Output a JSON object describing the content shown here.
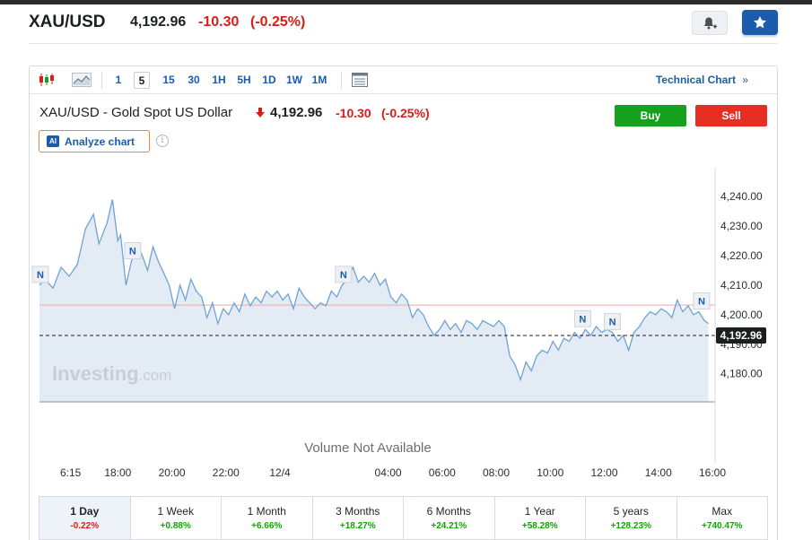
{
  "header": {
    "symbol": "XAU/USD",
    "price": "4,192.96",
    "change": "-10.30",
    "change_pct": "(-0.25%)",
    "bell_icon": "bell-plus-icon",
    "star_icon": "star-icon"
  },
  "toolbar": {
    "timeframes": [
      "1",
      "5",
      "15",
      "30",
      "1H",
      "5H",
      "1D",
      "1W",
      "1M"
    ],
    "active_timeframe": "5",
    "technical_chart": "Technical Chart",
    "technical_chart_arrow": "»"
  },
  "chart_header": {
    "title": "XAU/USD - Gold Spot US Dollar",
    "price": "4,192.96",
    "change": "-10.30",
    "change_pct": "(-0.25%)",
    "buy": "Buy",
    "sell": "Sell",
    "ai_badge": "AI",
    "analyze": "Analyze chart",
    "info": "i"
  },
  "chart_data": {
    "type": "area",
    "y_ticks": [
      "4,240.00",
      "4,230.00",
      "4,220.00",
      "4,210.00",
      "4,200.00",
      "4,190.00",
      "4,180.00"
    ],
    "x_ticks": [
      "6:15",
      "18:00",
      "20:00",
      "22:00",
      "12/4",
      "04:00",
      "06:00",
      "08:00",
      "10:00",
      "12:00",
      "14:00",
      "16:00"
    ],
    "ylim": [
      4170.5,
      4247
    ],
    "x_hours": [
      16.25,
      18,
      20,
      22,
      24,
      28,
      30,
      32,
      34,
      36,
      38,
      40
    ],
    "xlim": [
      15.1,
      40.1
    ],
    "previous_close": 4203.26,
    "last_price": 4192.96,
    "last_price_label": "4,192.96",
    "watermark": "Investing",
    "watermark_suffix": ".com",
    "volume_note": "Volume Not Available",
    "news_marker": "N",
    "news_hours": [
      15.1,
      18.55,
      26.35,
      35.2,
      36.3,
      39.6
    ],
    "series": [
      {
        "x": [
          15.1,
          15.3,
          15.6,
          15.9,
          16.2,
          16.5,
          16.8,
          17.1,
          17.3,
          17.6,
          17.8,
          18.0,
          18.1,
          18.3,
          18.5,
          18.7,
          18.9,
          19.1,
          19.3,
          19.5,
          19.7,
          19.9,
          20.1,
          20.3,
          20.5,
          20.7,
          20.9,
          21.1,
          21.3,
          21.5,
          21.7,
          21.9,
          22.1,
          22.3,
          22.5,
          22.7,
          22.9,
          23.1,
          23.3,
          23.5,
          23.7,
          23.9,
          24.1,
          24.3,
          24.5,
          24.7,
          24.9,
          25.1,
          25.3,
          25.5,
          25.7,
          25.9,
          26.1,
          26.3,
          26.5,
          26.7,
          26.9,
          27.1,
          27.3,
          27.5,
          27.7,
          27.9,
          28.1,
          28.3,
          28.5,
          28.7,
          28.9,
          29.1,
          29.3,
          29.5,
          29.7,
          29.9,
          30.1,
          30.3,
          30.5,
          30.7,
          30.9,
          31.1,
          31.3,
          31.5,
          31.7,
          31.9,
          32.1,
          32.3,
          32.5,
          32.7,
          32.9,
          33.1,
          33.3,
          33.5,
          33.7,
          33.9,
          34.1,
          34.3,
          34.5,
          34.7,
          34.9,
          35.1,
          35.3,
          35.5,
          35.7,
          35.9,
          36.1,
          36.3,
          36.5,
          36.7,
          36.9,
          37.1,
          37.3,
          37.5,
          37.7,
          37.9,
          38.1,
          38.3,
          38.5,
          38.7,
          38.9,
          39.1,
          39.3,
          39.5,
          39.7,
          39.85
        ],
        "y": [
          4210,
          4212,
          4209,
          4216,
          4213,
          4217,
          4229,
          4234,
          4224,
          4231,
          4239,
          4225,
          4227,
          4210,
          4218,
          4224,
          4220,
          4215,
          4223,
          4218,
          4214,
          4210,
          4202,
          4210,
          4205,
          4212,
          4208,
          4206,
          4199,
          4204,
          4197,
          4202,
          4200,
          4204,
          4201,
          4207,
          4203,
          4206,
          4204,
          4208,
          4206,
          4208,
          4205,
          4207,
          4202,
          4209,
          4206,
          4204,
          4202,
          4204,
          4203,
          4208,
          4206,
          4210,
          4212,
          4216,
          4211,
          4213,
          4211,
          4214,
          4210,
          4212,
          4206,
          4204,
          4207,
          4205,
          4199,
          4202,
          4200,
          4196,
          4193,
          4195,
          4198,
          4195,
          4197,
          4194,
          4198,
          4197,
          4195,
          4198,
          4197,
          4196,
          4198,
          4196,
          4186,
          4183,
          4178,
          4184,
          4181,
          4186,
          4188,
          4187,
          4191,
          4188,
          4192,
          4191,
          4194,
          4192,
          4195,
          4193,
          4196,
          4194,
          4195,
          4194,
          4191,
          4193,
          4188,
          4194,
          4196,
          4199,
          4201,
          4200,
          4202,
          4201,
          4199,
          4205,
          4201,
          4203,
          4200,
          4201,
          4198,
          4197
        ]
      }
    ]
  },
  "periods": [
    {
      "label": "1 Day",
      "value": "-0.22%",
      "dir": "neg"
    },
    {
      "label": "1 Week",
      "value": "+0.88%",
      "dir": "pos"
    },
    {
      "label": "1 Month",
      "value": "+6.66%",
      "dir": "pos"
    },
    {
      "label": "3 Months",
      "value": "+18.27%",
      "dir": "pos"
    },
    {
      "label": "6 Months",
      "value": "+24.21%",
      "dir": "pos"
    },
    {
      "label": "1 Year",
      "value": "+58.28%",
      "dir": "pos"
    },
    {
      "label": "5 years",
      "value": "+128.23%",
      "dir": "pos"
    },
    {
      "label": "Max",
      "value": "+740.47%",
      "dir": "pos"
    }
  ],
  "colors": {
    "line": "#6fa3d6",
    "area": "#e3ebf4",
    "accent": "#1b5cad",
    "negative": "#d91e18",
    "positive": "#0ea600",
    "buy": "#15a11e",
    "sell": "#e62f22"
  }
}
